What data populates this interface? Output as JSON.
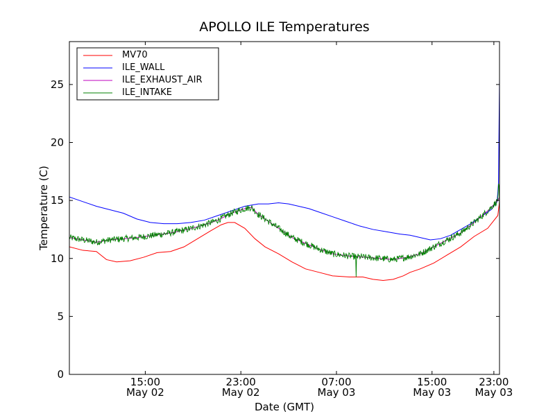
{
  "chart_data": {
    "type": "line",
    "title": "APOLLO ILE Temperatures",
    "xlabel": "Date (GMT)",
    "ylabel": "Temperature (C)",
    "xlim_hours": [
      12.0,
      24.75
    ],
    "ylim": [
      0,
      28.7
    ],
    "yticks": [
      0,
      5,
      10,
      15,
      20,
      25
    ],
    "xticks": [
      {
        "hour": 14.25,
        "time": "15:00",
        "date": "May 02"
      },
      {
        "hour": 17.083,
        "time": "23:00",
        "date": "May 02"
      },
      {
        "hour": 19.917,
        "time": "07:00",
        "date": "May 03"
      },
      {
        "hour": 22.75,
        "time": "15:00",
        "date": "May 03"
      },
      {
        "hour": 24.583,
        "time": "23:00",
        "date": "May 03"
      }
    ],
    "grid": false,
    "legend_position": "top-left",
    "series": [
      {
        "name": "MV70",
        "color": "#ff0000",
        "noise": 0,
        "points": [
          [
            12.0,
            11.0
          ],
          [
            12.4,
            10.7
          ],
          [
            12.8,
            10.6
          ],
          [
            13.1,
            9.9
          ],
          [
            13.4,
            9.7
          ],
          [
            13.8,
            9.8
          ],
          [
            14.2,
            10.1
          ],
          [
            14.6,
            10.5
          ],
          [
            15.0,
            10.6
          ],
          [
            15.4,
            11.0
          ],
          [
            15.8,
            11.7
          ],
          [
            16.2,
            12.4
          ],
          [
            16.5,
            12.9
          ],
          [
            16.7,
            13.1
          ],
          [
            16.9,
            13.1
          ],
          [
            17.2,
            12.6
          ],
          [
            17.5,
            11.7
          ],
          [
            17.8,
            11.0
          ],
          [
            18.2,
            10.4
          ],
          [
            18.6,
            9.7
          ],
          [
            19.0,
            9.1
          ],
          [
            19.4,
            8.8
          ],
          [
            19.8,
            8.5
          ],
          [
            20.3,
            8.4
          ],
          [
            20.7,
            8.4
          ],
          [
            21.0,
            8.2
          ],
          [
            21.3,
            8.1
          ],
          [
            21.6,
            8.2
          ],
          [
            21.9,
            8.5
          ],
          [
            22.1,
            8.8
          ],
          [
            22.4,
            9.1
          ],
          [
            22.8,
            9.6
          ],
          [
            23.2,
            10.3
          ],
          [
            23.6,
            11.0
          ],
          [
            24.0,
            11.9
          ],
          [
            24.4,
            12.6
          ],
          [
            24.7,
            13.7
          ],
          [
            24.75,
            14.9
          ]
        ]
      },
      {
        "name": "ILE_WALL",
        "color": "#0000ff",
        "noise": 0,
        "points": [
          [
            12.0,
            15.3
          ],
          [
            12.4,
            14.9
          ],
          [
            12.8,
            14.5
          ],
          [
            13.2,
            14.2
          ],
          [
            13.6,
            13.9
          ],
          [
            14.0,
            13.4
          ],
          [
            14.4,
            13.1
          ],
          [
            14.8,
            13.0
          ],
          [
            15.2,
            13.0
          ],
          [
            15.6,
            13.1
          ],
          [
            16.0,
            13.3
          ],
          [
            16.4,
            13.7
          ],
          [
            16.8,
            14.1
          ],
          [
            17.2,
            14.5
          ],
          [
            17.6,
            14.7
          ],
          [
            17.9,
            14.7
          ],
          [
            18.2,
            14.8
          ],
          [
            18.5,
            14.7
          ],
          [
            18.8,
            14.5
          ],
          [
            19.1,
            14.3
          ],
          [
            19.4,
            14.0
          ],
          [
            19.8,
            13.6
          ],
          [
            20.2,
            13.2
          ],
          [
            20.6,
            12.8
          ],
          [
            21.0,
            12.5
          ],
          [
            21.4,
            12.3
          ],
          [
            21.8,
            12.1
          ],
          [
            22.1,
            12.0
          ],
          [
            22.4,
            11.8
          ],
          [
            22.7,
            11.6
          ],
          [
            23.0,
            11.7
          ],
          [
            23.3,
            12.0
          ],
          [
            23.6,
            12.5
          ],
          [
            23.9,
            13.0
          ],
          [
            24.2,
            13.6
          ],
          [
            24.5,
            14.2
          ],
          [
            24.68,
            14.9
          ],
          [
            24.72,
            16.5
          ],
          [
            24.75,
            25.5
          ]
        ]
      },
      {
        "name": "ILE_EXHAUST_AIR",
        "color": "#bf00bf",
        "noise": 0,
        "points": [
          [
            12.0,
            11.8
          ],
          [
            12.4,
            11.6
          ],
          [
            12.8,
            11.4
          ],
          [
            13.2,
            11.6
          ],
          [
            13.6,
            11.7
          ],
          [
            14.0,
            11.8
          ],
          [
            14.5,
            12.0
          ],
          [
            15.0,
            12.2
          ],
          [
            15.5,
            12.5
          ],
          [
            16.0,
            12.9
          ],
          [
            16.4,
            13.3
          ],
          [
            16.8,
            13.9
          ],
          [
            17.2,
            14.3
          ],
          [
            17.4,
            14.4
          ],
          [
            17.6,
            13.8
          ],
          [
            17.9,
            13.2
          ],
          [
            18.2,
            12.6
          ],
          [
            18.6,
            11.8
          ],
          [
            19.0,
            11.3
          ],
          [
            19.4,
            10.8
          ],
          [
            19.8,
            10.4
          ],
          [
            20.3,
            10.2
          ],
          [
            20.8,
            10.1
          ],
          [
            21.2,
            10.0
          ],
          [
            21.6,
            9.9
          ],
          [
            22.0,
            10.1
          ],
          [
            22.4,
            10.4
          ],
          [
            22.8,
            11.0
          ],
          [
            23.2,
            11.6
          ],
          [
            23.6,
            12.2
          ],
          [
            24.0,
            13.1
          ],
          [
            24.4,
            14.1
          ],
          [
            24.7,
            15.0
          ],
          [
            24.75,
            15.3
          ]
        ]
      },
      {
        "name": "ILE_INTAKE",
        "color": "#008000",
        "noise": 0.28,
        "points": [
          [
            12.0,
            11.8
          ],
          [
            12.4,
            11.6
          ],
          [
            12.8,
            11.4
          ],
          [
            13.2,
            11.6
          ],
          [
            13.6,
            11.7
          ],
          [
            14.0,
            11.8
          ],
          [
            14.5,
            12.0
          ],
          [
            15.0,
            12.2
          ],
          [
            15.5,
            12.5
          ],
          [
            16.0,
            12.9
          ],
          [
            16.4,
            13.3
          ],
          [
            16.8,
            13.9
          ],
          [
            17.2,
            14.3
          ],
          [
            17.4,
            14.4
          ],
          [
            17.6,
            13.8
          ],
          [
            17.9,
            13.2
          ],
          [
            18.2,
            12.6
          ],
          [
            18.6,
            11.8
          ],
          [
            19.0,
            11.3
          ],
          [
            19.4,
            10.8
          ],
          [
            19.8,
            10.4
          ],
          [
            20.3,
            10.2
          ],
          [
            20.8,
            10.1
          ],
          [
            21.2,
            10.0
          ],
          [
            21.6,
            9.9
          ],
          [
            22.0,
            10.1
          ],
          [
            22.4,
            10.4
          ],
          [
            22.8,
            11.0
          ],
          [
            23.2,
            11.6
          ],
          [
            23.6,
            12.2
          ],
          [
            24.0,
            13.1
          ],
          [
            24.4,
            14.1
          ],
          [
            24.7,
            15.0
          ],
          [
            24.73,
            17.0
          ],
          [
            24.75,
            14.2
          ]
        ],
        "spikes": [
          [
            20.5,
            8.4
          ]
        ]
      }
    ]
  }
}
